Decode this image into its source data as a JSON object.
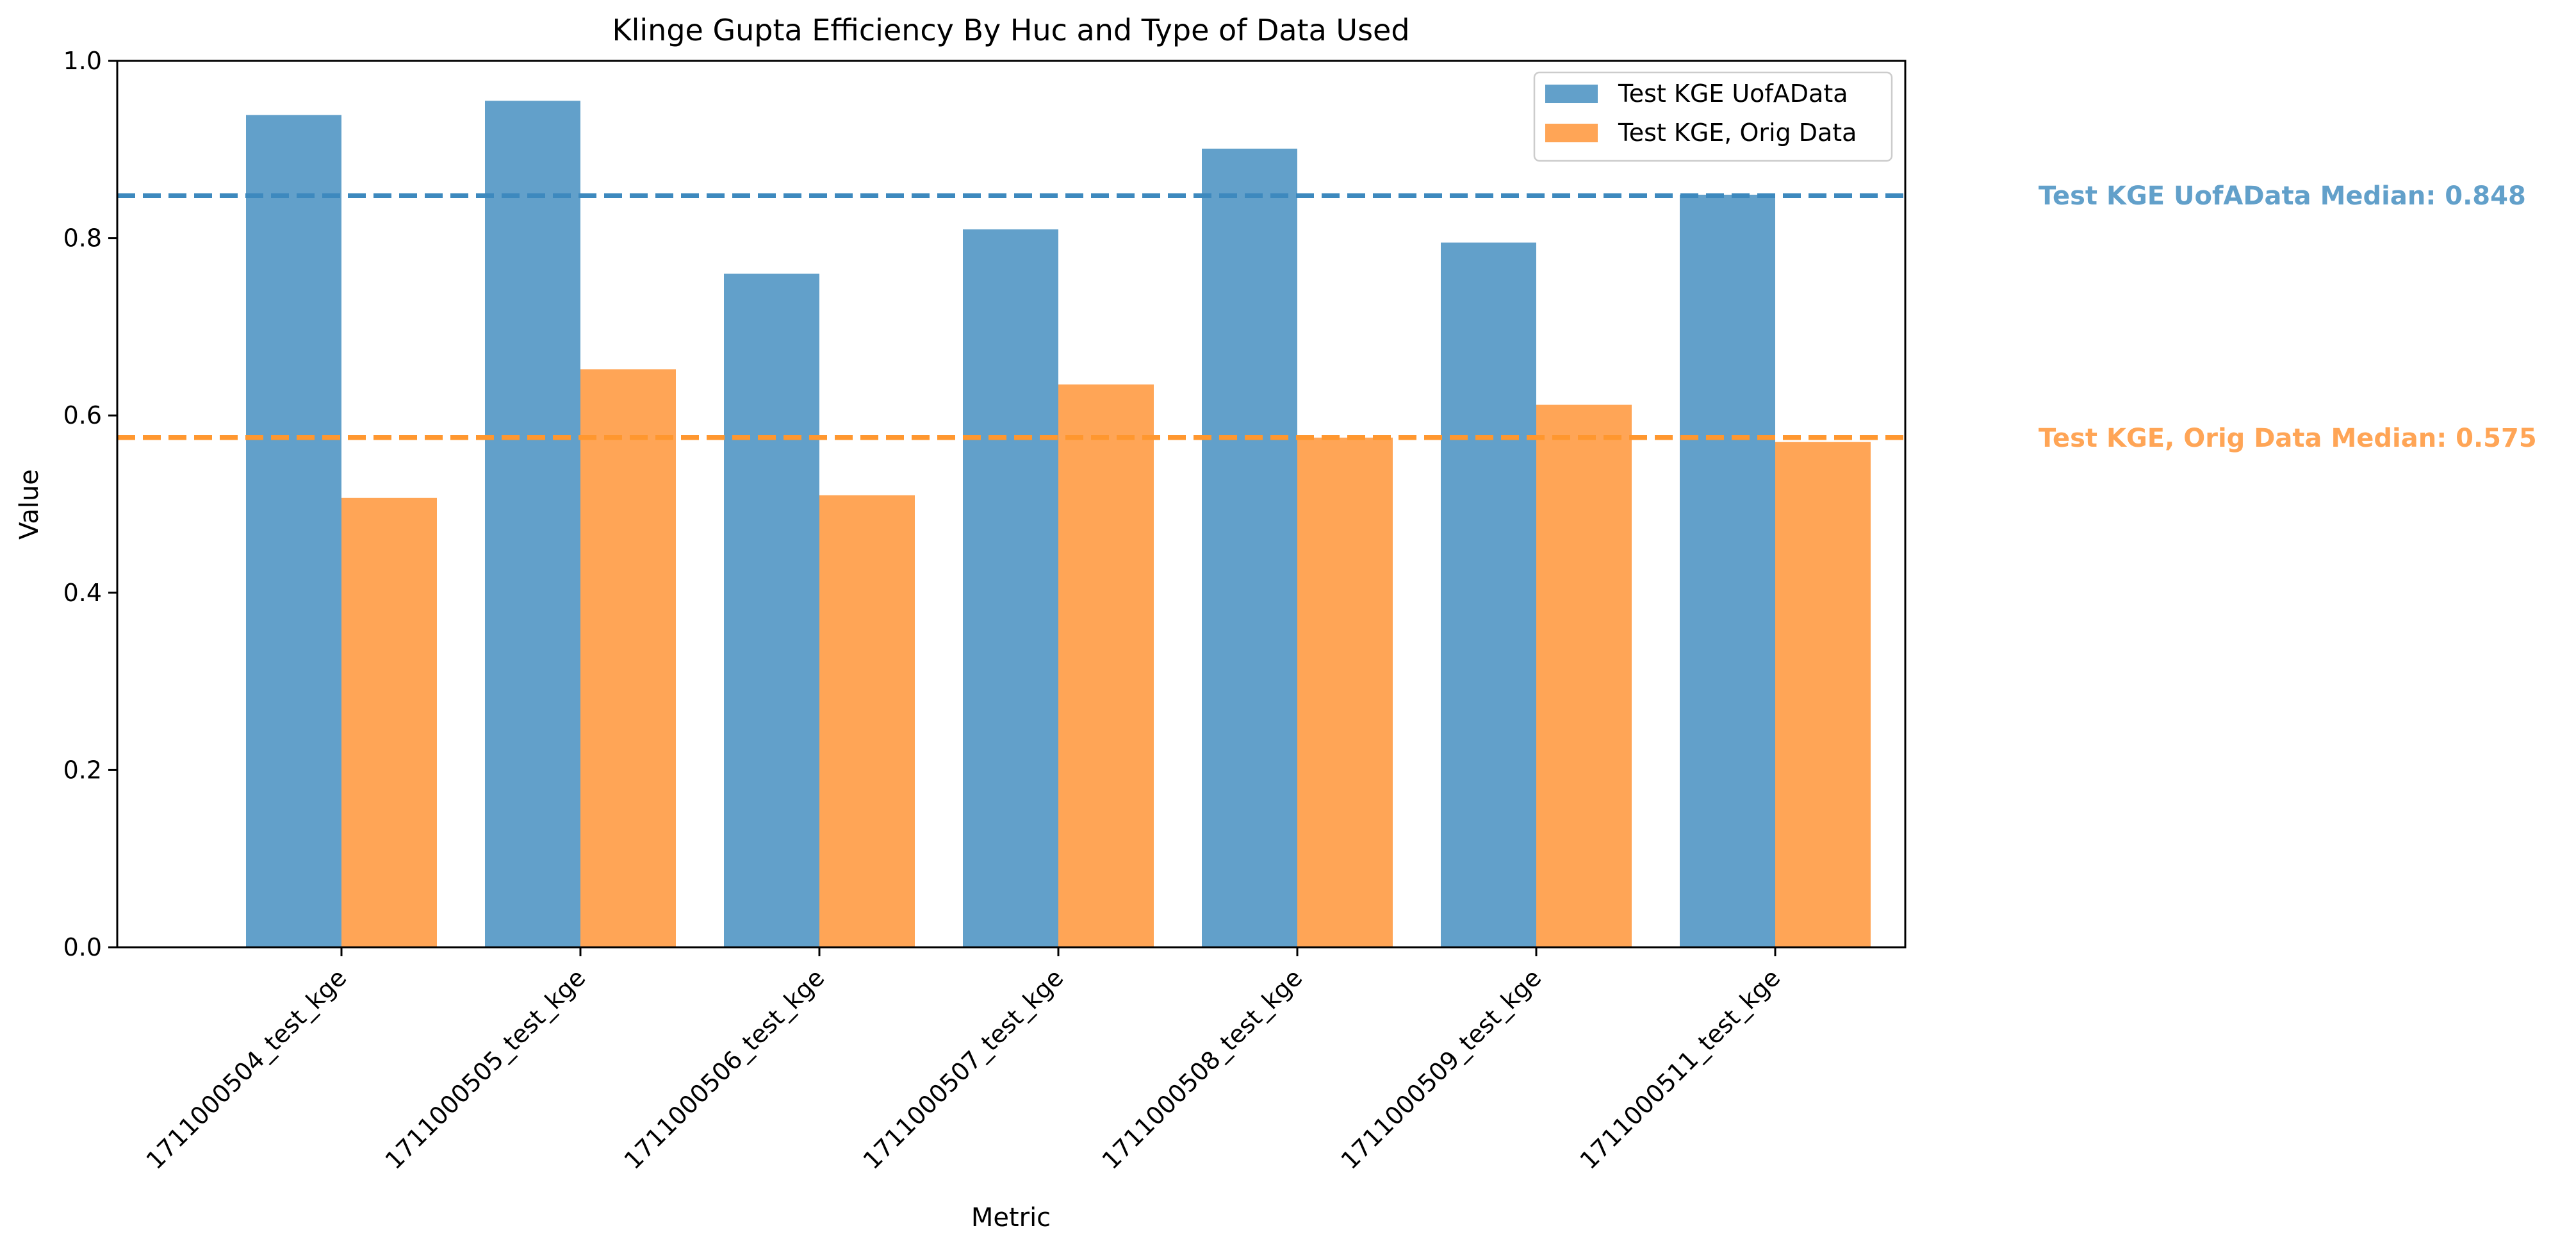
{
  "chart_data": {
    "type": "bar",
    "title": "Klinge Gupta Efficiency By Huc and Type of Data Used",
    "xlabel": "Metric",
    "ylabel": "Value",
    "ylim": [
      0,
      1.0
    ],
    "yticks": [
      0.0,
      0.2,
      0.4,
      0.6,
      0.8,
      1.0
    ],
    "ytick_labels": [
      "0.0",
      "0.2",
      "0.4",
      "0.6",
      "0.8",
      "1.0"
    ],
    "grid": false,
    "legend_position": "top-right",
    "categories": [
      "1711000504_test_kge",
      "1711000505_test_kge",
      "1711000506_test_kge",
      "1711000507_test_kge",
      "1711000508_test_kge",
      "1711000509_test_kge",
      "1711000511_test_kge"
    ],
    "series": [
      {
        "name": "Test KGE UofAData",
        "color": "#62a0ca",
        "values": [
          0.939,
          0.955,
          0.76,
          0.81,
          0.901,
          0.795,
          0.849
        ]
      },
      {
        "name": "Test KGE, Orig Data",
        "color": "#ffa556",
        "values": [
          0.507,
          0.652,
          0.51,
          0.635,
          0.575,
          0.612,
          0.57
        ]
      }
    ],
    "reference_lines": [
      {
        "series": "Test KGE UofAData",
        "value": 0.848,
        "label": "Test KGE UofAData Median: 0.848",
        "color": "#3d89be",
        "label_color": "#62a0ca"
      },
      {
        "series": "Test KGE, Orig Data",
        "value": 0.575,
        "label": "Test KGE, Orig Data Median: 0.575",
        "color": "#ff972f",
        "label_color": "#ffa556"
      }
    ]
  }
}
